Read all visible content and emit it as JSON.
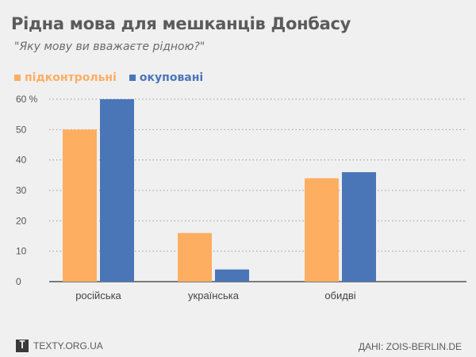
{
  "colors": {
    "background": "#f0f0f0",
    "series_controlled": "#fdae61",
    "series_occupied": "#4a76b8",
    "title": "#5b5b5b",
    "grid": "#9a9a9a"
  },
  "header": {
    "title": "Рідна мова для мешканців Донбасу",
    "subtitle": "\"Яку мову ви вважаєте рідною?\""
  },
  "footer": {
    "logo_icon": "texty-logo-icon",
    "logo_letter": "T",
    "site": "TEXTY.ORG.UA",
    "source": "ДАНІ: ZOIS-BERLIN.DE"
  },
  "chart_data": {
    "type": "bar",
    "title": "Рідна мова для мешканців Донбасу",
    "subtitle": "\"Яку мову ви вважаєте рідною?\"",
    "categories": [
      "російська",
      "українська",
      "обидві"
    ],
    "series": [
      {
        "name": "підконтрольні",
        "color": "#fdae61",
        "values": [
          50,
          16,
          34
        ]
      },
      {
        "name": "окуповані",
        "color": "#4a76b8",
        "values": [
          60,
          4,
          36
        ]
      }
    ],
    "yticks": [
      "60 %",
      "50",
      "40",
      "30",
      "20",
      "10",
      "0"
    ],
    "ylim": [
      0,
      60
    ],
    "grid": true,
    "legend_position": "top-left"
  }
}
